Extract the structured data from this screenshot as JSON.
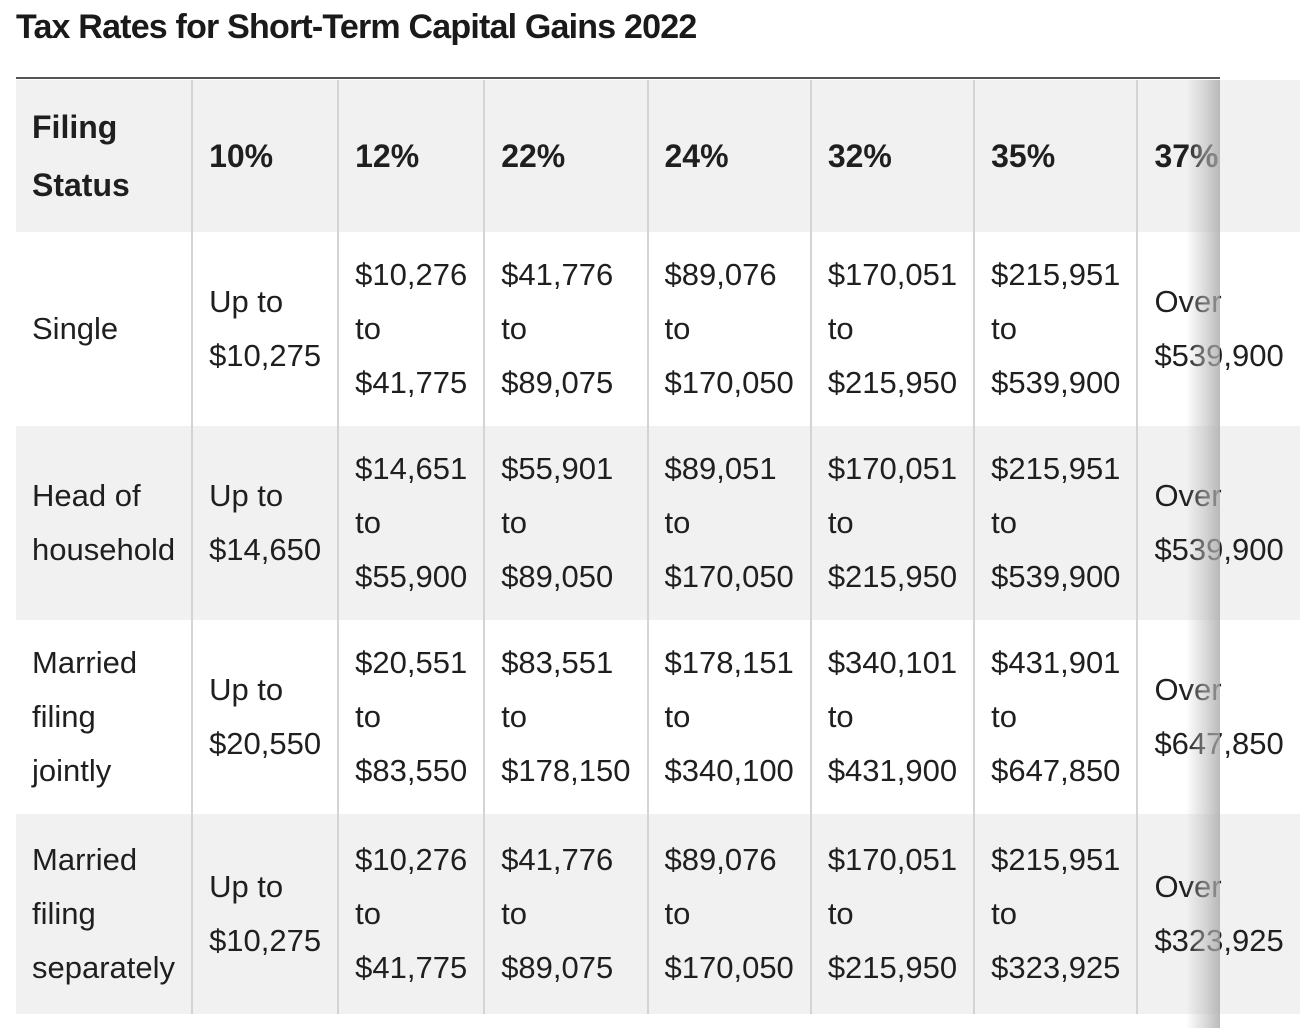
{
  "title": "Tax Rates for Short-Term Capital Gains 2022",
  "table": {
    "headers": [
      "Filing Status",
      "10%",
      "12%",
      "22%",
      "24%",
      "32%",
      "35%",
      "37%"
    ],
    "rows": [
      {
        "status": "Single",
        "cells": [
          [
            "Up to",
            "$10,275"
          ],
          [
            "$10,276",
            "to",
            "$41,775"
          ],
          [
            "$41,776",
            "to",
            "$89,075"
          ],
          [
            "$89,076",
            "to",
            "$170,050"
          ],
          [
            "$170,051",
            "to",
            "$215,950"
          ],
          [
            "$215,951",
            "to",
            "$539,900"
          ],
          [
            "Over",
            "$539,900"
          ]
        ]
      },
      {
        "status": "Head of household",
        "cells": [
          [
            "Up to",
            "$14,650"
          ],
          [
            "$14,651",
            "to",
            "$55,900"
          ],
          [
            "$55,901",
            "to",
            "$89,050"
          ],
          [
            "$89,051",
            "to",
            "$170,050"
          ],
          [
            "$170,051",
            "to",
            "$215,950"
          ],
          [
            "$215,951",
            "to",
            "$539,900"
          ],
          [
            "Over",
            "$539,900"
          ]
        ]
      },
      {
        "status": "Married filing jointly",
        "cells": [
          [
            "Up to",
            "$20,550"
          ],
          [
            "$20,551",
            "to",
            "$83,550"
          ],
          [
            "$83,551",
            "to",
            "$178,150"
          ],
          [
            "$178,151",
            "to",
            "$340,100"
          ],
          [
            "$340,101",
            "to",
            "$431,900"
          ],
          [
            "$431,901",
            "to",
            "$647,850"
          ],
          [
            "Over",
            "$647,850"
          ]
        ]
      },
      {
        "status": "Married filing separately",
        "cells": [
          [
            "Up to",
            "$10,275"
          ],
          [
            "$10,276",
            "to",
            "$41,775"
          ],
          [
            "$41,776",
            "to",
            "$89,075"
          ],
          [
            "$89,076",
            "to",
            "$170,050"
          ],
          [
            "$170,051",
            "to",
            "$215,950"
          ],
          [
            "$215,951",
            "to",
            "$323,925"
          ],
          [
            "Over",
            "$323,925"
          ]
        ]
      }
    ]
  },
  "colors": {
    "shaded_row": "#f1f1f1",
    "border": "#d4d4d4",
    "rule": "#555555",
    "text": "#1f1f1f"
  }
}
